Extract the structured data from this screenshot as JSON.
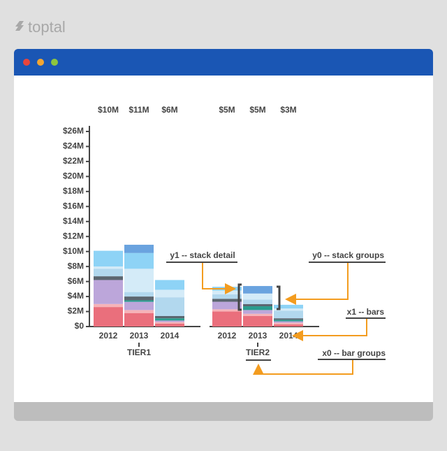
{
  "logo": "toptal",
  "chart_data": {
    "type": "grouped-stacked-bar",
    "groups": [
      {
        "name": "TIER1",
        "categories": [
          "2012",
          "2013",
          "2014"
        ],
        "total_labels": [
          "$10M",
          "$11M",
          "$6M"
        ]
      },
      {
        "name": "TIER2",
        "categories": [
          "2012",
          "2013",
          "2014"
        ],
        "total_labels": [
          "$5M",
          "$5M",
          "$3M"
        ]
      }
    ],
    "series": [
      {
        "color": "#ea6f7c",
        "values": [
          2.6,
          1.8,
          0.4,
          2.0,
          1.4,
          0.3
        ]
      },
      {
        "color": "#f6b3b8",
        "values": [
          0.4,
          0.4,
          0.2,
          0.3,
          0.3,
          0.2
        ]
      },
      {
        "color": "#bca6da",
        "values": [
          3.2,
          1.1,
          0.2,
          1.0,
          0.5,
          0.2
        ]
      },
      {
        "color": "#2a9d8f",
        "values": [
          0,
          0.2,
          0.3,
          0,
          0.5,
          0.2
        ]
      },
      {
        "color": "#5b6670",
        "values": [
          0.5,
          0.5,
          0.3,
          0.4,
          0.3,
          0.2
        ]
      },
      {
        "color": "#b2d8ee",
        "values": [
          1.0,
          0.6,
          2.5,
          0.6,
          0.6,
          1.0
        ]
      },
      {
        "color": "#d4ebf8",
        "values": [
          0.3,
          3.1,
          1.0,
          0.5,
          0.8,
          0.3
        ]
      },
      {
        "color": "#8ed3f6",
        "values": [
          2.1,
          2.1,
          1.3,
          0.5,
          0,
          0.5
        ]
      },
      {
        "color": "#6aa3df",
        "values": [
          0,
          1.1,
          0,
          0,
          1.0,
          0
        ]
      }
    ],
    "ylim": [
      0,
      26
    ],
    "yticks": [
      {
        "value": 0,
        "label": "$0"
      },
      {
        "value": 2,
        "label": "$2M"
      },
      {
        "value": 4,
        "label": "$4M"
      },
      {
        "value": 6,
        "label": "$6M"
      },
      {
        "value": 8,
        "label": "$8M"
      },
      {
        "value": 10,
        "label": "$10M"
      },
      {
        "value": 12,
        "label": "$12M"
      },
      {
        "value": 14,
        "label": "$14M"
      },
      {
        "value": 16,
        "label": "$16M"
      },
      {
        "value": 18,
        "label": "$18M"
      },
      {
        "value": 20,
        "label": "$20M"
      },
      {
        "value": 22,
        "label": "$22M"
      },
      {
        "value": 24,
        "label": "$24M"
      },
      {
        "value": 26,
        "label": "$26M"
      }
    ],
    "annotations": [
      "y1 -- stack detail",
      "y0 -- stack groups",
      "x1 -- bars",
      "x0 -- bar groups"
    ]
  }
}
